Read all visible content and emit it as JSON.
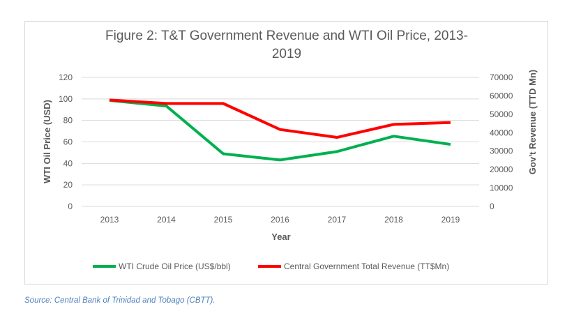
{
  "chart_data": {
    "type": "line",
    "title": "Figure 2: T&T Government Revenue and WTI Oil Price, 2013-2019",
    "title_lines": [
      "Figure 2: T&T Government Revenue and WTI Oil Price, 2013-",
      "2019"
    ],
    "xlabel": "Year",
    "ylabel": "WTI Oil Price (USD)",
    "y2label": "Gov't Revenue (TTD Mn)",
    "categories": [
      "2013",
      "2014",
      "2015",
      "2016",
      "2017",
      "2018",
      "2019"
    ],
    "ylim": [
      0,
      120
    ],
    "y2lim": [
      0,
      70000
    ],
    "yticks": [
      "0",
      "20",
      "40",
      "60",
      "80",
      "100",
      "120"
    ],
    "y2ticks": [
      "0",
      "10000",
      "20000",
      "30000",
      "40000",
      "50000",
      "60000",
      "70000"
    ],
    "grid": true,
    "legend_position": "bottom",
    "series": [
      {
        "name": "WTI Crude Oil Price (US$/bbl)",
        "axis": "left",
        "color": "#00b050",
        "values": [
          98.6,
          93.4,
          49,
          43.2,
          51,
          65.3,
          57.7
        ]
      },
      {
        "name": "Central Government Total Revenue (TT$Mn)",
        "axis": "right",
        "color": "#ff0000",
        "values": [
          57760,
          55860,
          55860,
          41740,
          37450,
          44510,
          45520
        ]
      }
    ]
  },
  "source": "Source: Central Bank of Trinidad and Tobago (CBTT)."
}
